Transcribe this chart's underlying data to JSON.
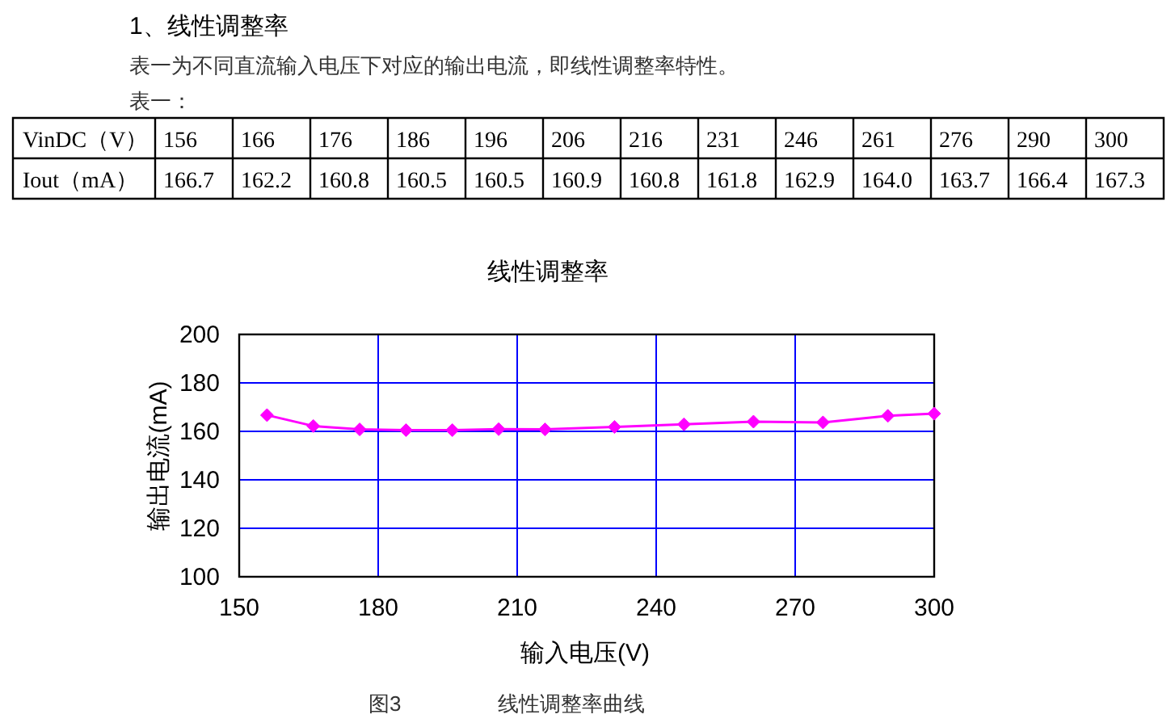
{
  "chart_data": [
    {
      "type": "heatmap",
      "title": "表一：",
      "xlabel": "VinDC（V）",
      "categories": [
        "156",
        "166",
        "176",
        "186",
        "196",
        "206",
        "216",
        "231",
        "246",
        "261",
        "276",
        "290",
        "300"
      ],
      "y_categories": [
        "Iout（mA）"
      ],
      "cells": [
        [
          166.7,
          162.2,
          160.8,
          160.5,
          160.5,
          160.9,
          160.8,
          161.8,
          162.9,
          164.0,
          163.7,
          166.4,
          167.3
        ]
      ],
      "cell_labels": [
        [
          "166.7",
          "162.2",
          "160.8",
          "160.5",
          "160.5",
          "160.9",
          "160.8",
          "161.8",
          "162.9",
          "164.0",
          "163.7",
          "166.4",
          "167.3"
        ]
      ],
      "annotations": [
        "1、线性调整率",
        "表一为不同直流输入电压下对应的输出电流，即线性调整率特性。"
      ]
    },
    {
      "type": "line",
      "title": "线性调整率",
      "xlabel": "输入电压(V)",
      "ylabel": "输出电流(mA)",
      "x": [
        156,
        166,
        176,
        186,
        196,
        206,
        216,
        231,
        246,
        261,
        276,
        290,
        300
      ],
      "values": [
        166.7,
        162.2,
        160.8,
        160.5,
        160.5,
        160.9,
        160.8,
        161.8,
        162.9,
        164.0,
        163.7,
        166.4,
        167.3
      ],
      "color": "#ff00ff",
      "marker": "diamond",
      "xlim": [
        150,
        300
      ],
      "xticks": [
        150,
        180,
        210,
        240,
        270,
        300
      ],
      "ylim": [
        100,
        200
      ],
      "yticks": [
        100,
        120,
        140,
        160,
        180,
        200
      ],
      "grid": true,
      "annotations": [
        "图3",
        "线性调整率曲线"
      ]
    }
  ]
}
